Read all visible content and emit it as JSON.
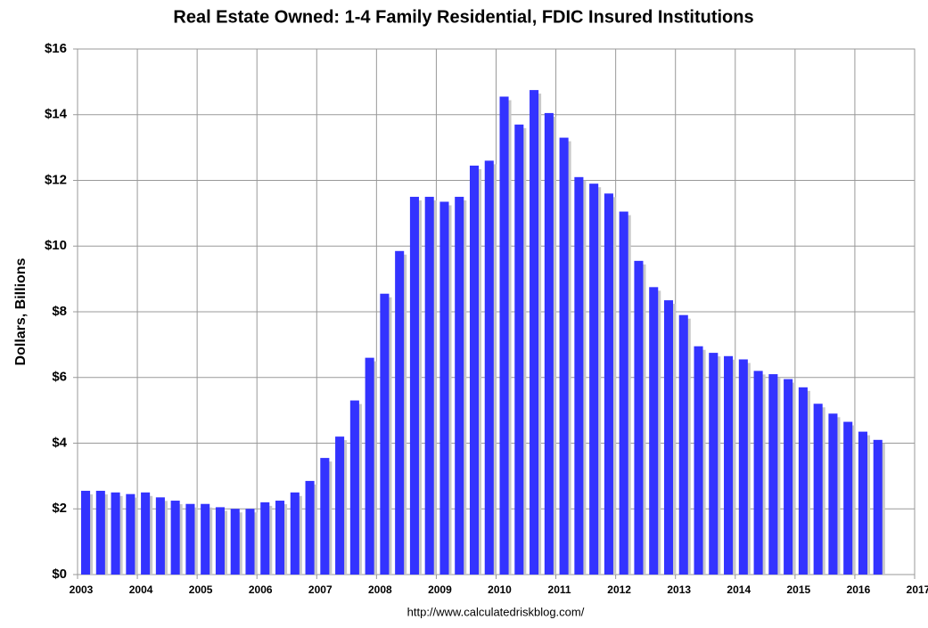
{
  "chart_data": {
    "type": "bar",
    "title": "Real Estate Owned: 1-4 Family Residential, FDIC Insured Institutions",
    "y_label": "Dollars, Billions",
    "source": "http://www.calculatedriskblog.com/",
    "color": "#3333ff",
    "grid": true,
    "x": [
      2003,
      2003.25,
      2003.5,
      2003.75,
      2004,
      2004.25,
      2004.5,
      2004.75,
      2005,
      2005.25,
      2005.5,
      2005.75,
      2006,
      2006.25,
      2006.5,
      2006.75,
      2007,
      2007.25,
      2007.5,
      2007.75,
      2008,
      2008.25,
      2008.5,
      2008.75,
      2009,
      2009.25,
      2009.5,
      2009.75,
      2010,
      2010.25,
      2010.5,
      2010.75,
      2011,
      2011.25,
      2011.5,
      2011.75,
      2012,
      2012.25,
      2012.5,
      2012.75,
      2013,
      2013.25,
      2013.5,
      2013.75,
      2014,
      2014.25,
      2014.5,
      2014.75,
      2015,
      2015.25,
      2015.5,
      2015.75,
      2016,
      2016.25
    ],
    "values": [
      2.55,
      2.55,
      2.5,
      2.45,
      2.5,
      2.35,
      2.25,
      2.15,
      2.15,
      2.05,
      2.0,
      2.0,
      2.2,
      2.25,
      2.5,
      2.85,
      3.55,
      4.2,
      5.3,
      6.6,
      8.55,
      9.85,
      11.5,
      11.5,
      11.35,
      11.5,
      12.45,
      12.6,
      14.55,
      13.7,
      14.75,
      14.05,
      13.3,
      12.1,
      11.9,
      11.6,
      11.05,
      9.55,
      8.75,
      8.35,
      7.9,
      6.95,
      6.75,
      6.65,
      6.55,
      6.2,
      6.1,
      5.95,
      5.7,
      5.2,
      4.9,
      4.65,
      4.35,
      4.1
    ],
    "xlim": [
      2003,
      2017
    ],
    "xticks": [
      2003,
      2004,
      2005,
      2006,
      2007,
      2008,
      2009,
      2010,
      2011,
      2012,
      2013,
      2014,
      2015,
      2016,
      2017
    ],
    "ylim": [
      0,
      16
    ],
    "yticks": [
      {
        "value": 0,
        "label": "$0"
      },
      {
        "value": 2,
        "label": "$2"
      },
      {
        "value": 4,
        "label": "$4"
      },
      {
        "value": 6,
        "label": "$6"
      },
      {
        "value": 8,
        "label": "$8"
      },
      {
        "value": 10,
        "label": "$10"
      },
      {
        "value": 12,
        "label": "$12"
      },
      {
        "value": 14,
        "label": "$14"
      },
      {
        "value": 16,
        "label": "$16"
      }
    ]
  }
}
